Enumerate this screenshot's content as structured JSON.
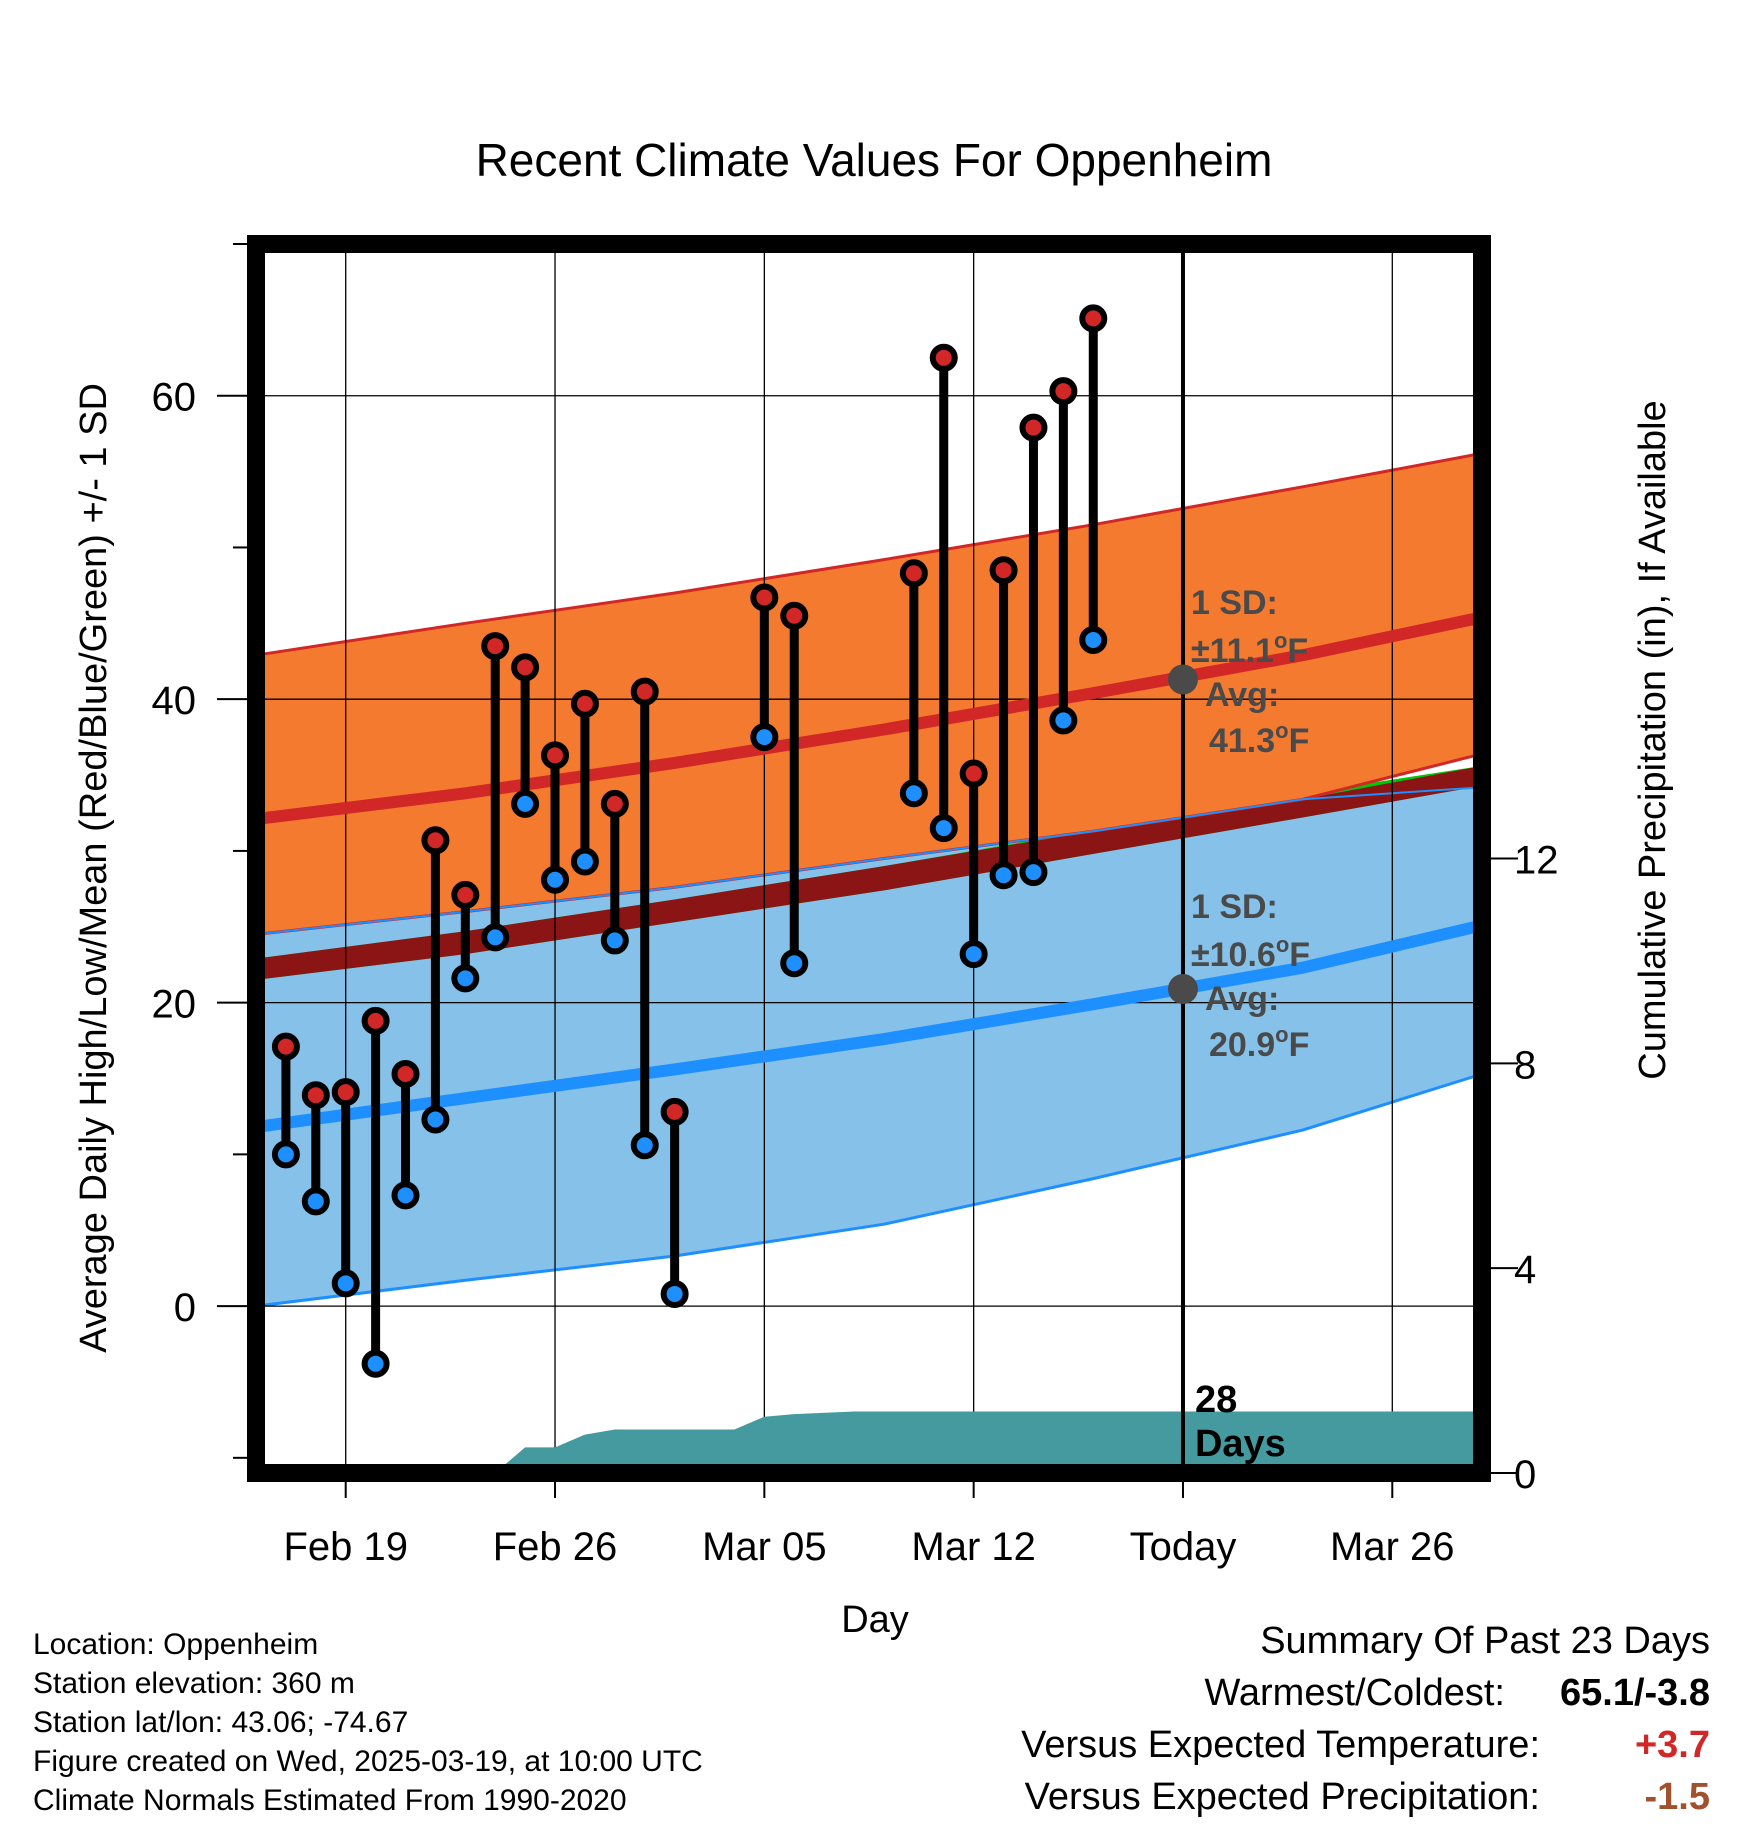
{
  "chart_data": {
    "type": "line",
    "title": "Recent Climate Values For Oppenheim",
    "xlabel": "Day",
    "ylabel": "Average Daily High/Low/Mean (Red/Blue/Green) +/- 1 SD",
    "y2label": "Cumulative Precipitation (in), If Available",
    "ylim": [
      -11,
      70
    ],
    "y2lim": [
      0,
      24
    ],
    "x_range": [
      "2025-02-16",
      "2025-03-29"
    ],
    "xticks": [
      {
        "date": "2025-02-19",
        "label": "Feb 19"
      },
      {
        "date": "2025-02-26",
        "label": "Feb 26"
      },
      {
        "date": "2025-03-05",
        "label": "Mar 05"
      },
      {
        "date": "2025-03-12",
        "label": "Mar 12"
      },
      {
        "date": "2025-03-19",
        "label": "Today"
      },
      {
        "date": "2025-03-26",
        "label": "Mar 26"
      }
    ],
    "yticks": [
      0,
      20,
      40,
      60
    ],
    "y2ticks": [
      0,
      4,
      8,
      12
    ],
    "grid": true,
    "normals": {
      "x": [
        "2025-02-16",
        "2025-02-23",
        "2025-03-02",
        "2025-03-09",
        "2025-03-16",
        "2025-03-23",
        "2025-03-29"
      ],
      "high_avg": [
        32.1,
        33.8,
        35.8,
        38.0,
        40.4,
        42.9,
        45.4
      ],
      "high_upper": [
        42.9,
        45.0,
        47.0,
        49.2,
        51.5,
        54.0,
        56.2
      ],
      "high_lower": [
        24.5,
        26.0,
        27.6,
        29.5,
        31.3,
        33.4,
        36.4
      ],
      "low_avg": [
        11.8,
        13.7,
        15.6,
        17.6,
        19.9,
        22.3,
        25.1
      ],
      "low_upper": [
        24.5,
        26.0,
        27.6,
        29.5,
        31.3,
        33.4,
        34.2
      ],
      "low_lower": [
        0.0,
        1.7,
        3.3,
        5.4,
        8.4,
        11.6,
        15.3
      ],
      "mean_upper": [
        22.9,
        24.7,
        26.8,
        29.0,
        31.4,
        33.8,
        35.6
      ],
      "mean_lower": [
        21.5,
        23.2,
        25.3,
        27.4,
        29.8,
        32.2,
        34.3
      ]
    },
    "observations": {
      "x": [
        "2025-02-17",
        "2025-02-18",
        "2025-02-19",
        "2025-02-20",
        "2025-02-21",
        "2025-02-22",
        "2025-02-23",
        "2025-02-24",
        "2025-02-25",
        "2025-02-26",
        "2025-02-27",
        "2025-02-28",
        "2025-03-01",
        "2025-03-02",
        "2025-03-05",
        "2025-03-06",
        "2025-03-10",
        "2025-03-11",
        "2025-03-12",
        "2025-03-13",
        "2025-03-14",
        "2025-03-15",
        "2025-03-16"
      ],
      "high": [
        17.1,
        13.9,
        14.1,
        18.8,
        15.3,
        30.7,
        27.1,
        43.5,
        42.1,
        36.3,
        39.7,
        33.1,
        40.5,
        12.8,
        46.7,
        45.5,
        48.3,
        62.5,
        35.1,
        48.5,
        57.9,
        60.3,
        65.1
      ],
      "low": [
        10.0,
        6.9,
        1.5,
        -3.8,
        7.3,
        12.3,
        21.6,
        24.3,
        33.1,
        28.1,
        29.3,
        24.1,
        10.6,
        0.8,
        37.5,
        22.6,
        33.8,
        31.5,
        23.2,
        28.4,
        28.6,
        38.6,
        43.9
      ]
    },
    "precip": {
      "x": [
        "2025-02-16",
        "2025-02-21",
        "2025-02-24",
        "2025-02-25",
        "2025-02-26",
        "2025-02-27",
        "2025-02-28",
        "2025-03-01",
        "2025-03-03",
        "2025-03-04",
        "2025-03-05",
        "2025-03-06",
        "2025-03-08",
        "2025-03-29"
      ],
      "cumulative": [
        0.0,
        0.0,
        0.0,
        0.5,
        0.5,
        0.75,
        0.85,
        0.85,
        0.85,
        0.85,
        1.1,
        1.15,
        1.2,
        1.2
      ]
    },
    "today": "2025-03-19",
    "high_annotation": {
      "sd": "±11.1",
      "avg": "41.3",
      "avg_value": 41.3
    },
    "low_annotation": {
      "sd": "±10.6",
      "avg": "20.9",
      "avg_value": 20.9
    },
    "days_label": "28",
    "days_word": "Days",
    "sd_prefix": "1 SD:",
    "avg_prefix": "Avg:",
    "unit_letter": "F",
    "degree_mark": "o"
  },
  "colors": {
    "high": "#d22727",
    "high_band": "#f47a30",
    "low": "#1e8fff",
    "low_band": "#85c1e9",
    "mean": "#00c800",
    "mean_overlap": "#8b1414",
    "precip": "#459aa0",
    "annotation": "#4a4a4a",
    "positive": "#d22727",
    "negative": "#a0522d"
  },
  "footer": {
    "location": "Location: Oppenheim",
    "elevation": "Station elevation: 360 m",
    "latlon": "Station lat/lon: 43.06; -74.67",
    "created": "Figure created on Wed, 2025-03-19, at 10:00 UTC",
    "normals": "Climate Normals Estimated From 1990-2020"
  },
  "summary": {
    "title": "Summary Of Past 23 Days",
    "warmest_label": "Warmest/Coldest:",
    "warmest_value": "65.1/-3.8",
    "temp_label": "Versus Expected Temperature:",
    "temp_value": "+3.7",
    "precip_label": "Versus Expected Precipitation:",
    "precip_value": "-1.5"
  }
}
